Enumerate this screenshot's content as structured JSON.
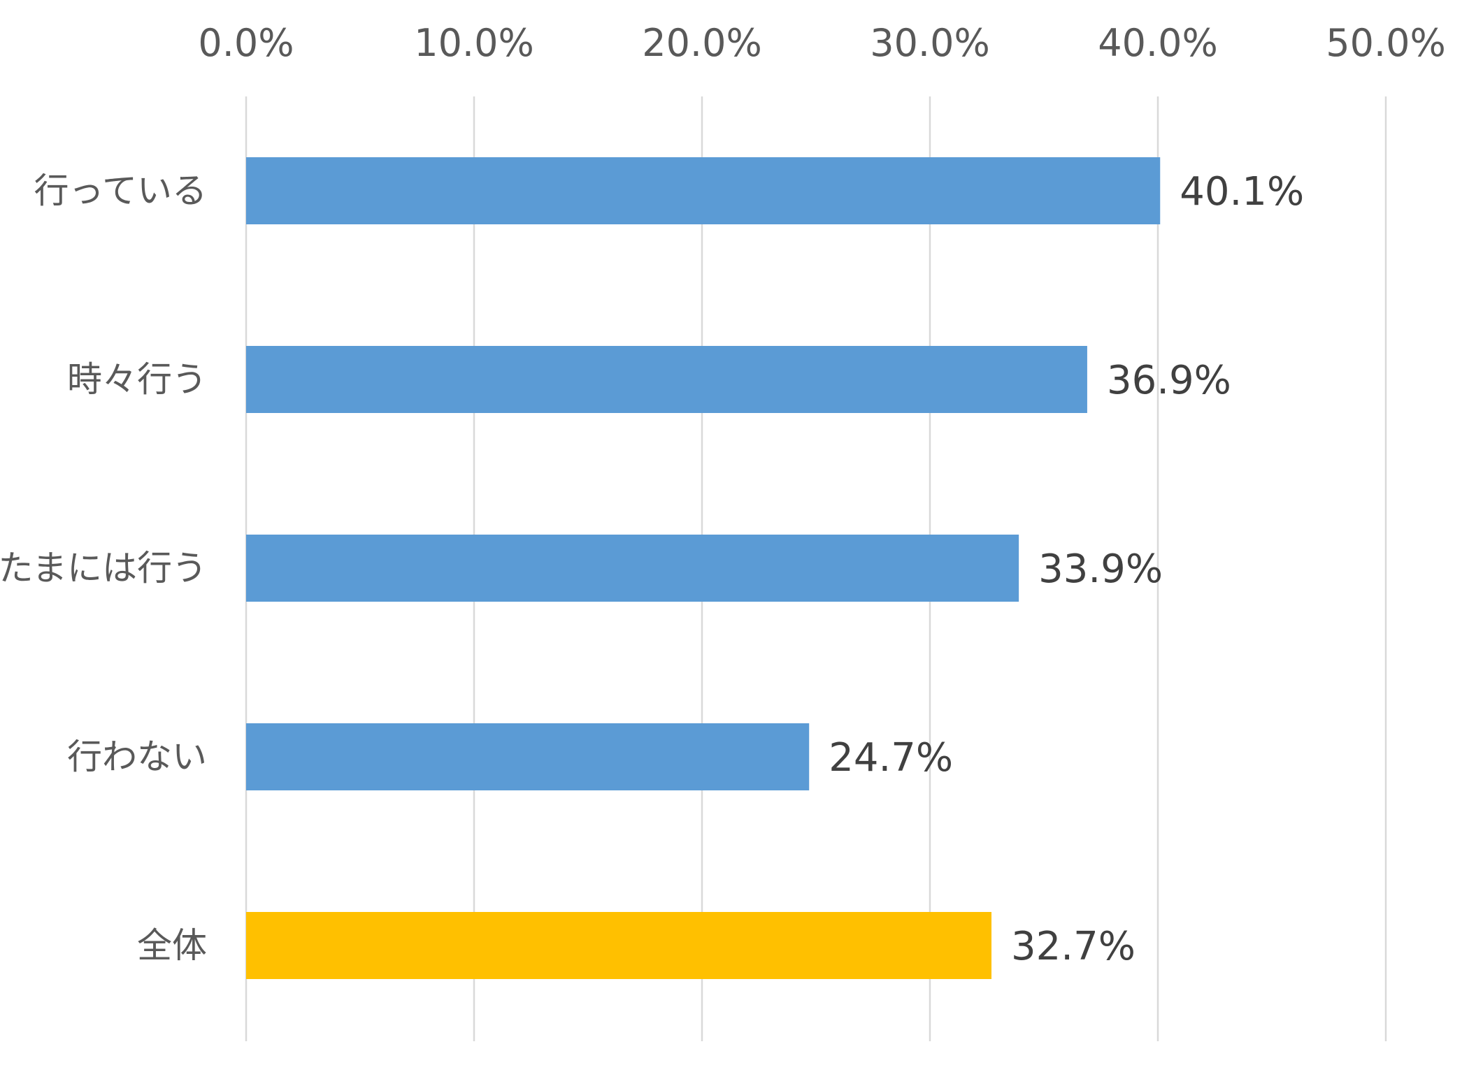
{
  "chart_data": {
    "type": "bar",
    "orientation": "horizontal",
    "categories": [
      "行っている",
      "時々行う",
      "たまには行う",
      "行わない",
      "全体"
    ],
    "values": [
      40.1,
      36.9,
      33.9,
      24.7,
      32.7
    ],
    "value_labels": [
      "40.1%",
      "36.9%",
      "33.9%",
      "24.7%",
      "32.7%"
    ],
    "bar_colors": [
      "#5b9bd5",
      "#5b9bd5",
      "#5b9bd5",
      "#5b9bd5",
      "#ffc000"
    ],
    "x_ticks": [
      0,
      10,
      20,
      30,
      40,
      50
    ],
    "x_tick_labels": [
      "0.0%",
      "10.0%",
      "20.0%",
      "30.0%",
      "40.0%",
      "50.0%"
    ],
    "xlim": [
      0,
      50
    ],
    "x_axis_position": "top",
    "grid": true,
    "legend": "none",
    "title": "",
    "xlabel": "",
    "ylabel": ""
  }
}
